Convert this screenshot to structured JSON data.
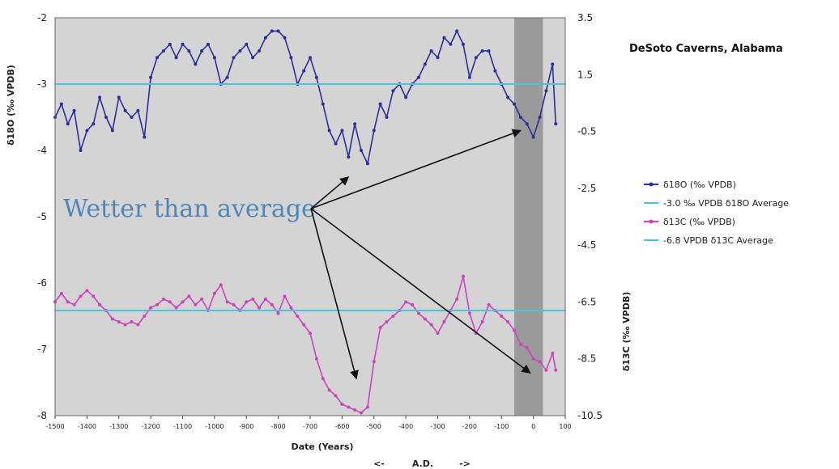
{
  "chart_data": {
    "type": "line",
    "title": "DeSoto Caverns, Alabama",
    "xlabel": "Date (Years)",
    "x_sublabel": [
      "<-",
      "A.D.",
      "->"
    ],
    "ylabel_left": "δ18O (‰ VPDB)",
    "ylabel_right": "δ13C (‰ VPDB)",
    "xlim": [
      -1500,
      100
    ],
    "ylim_left": [
      -8,
      -2
    ],
    "ylim_right": [
      -10.5,
      3.5
    ],
    "x_ticks": [
      -1500,
      -1400,
      -1300,
      -1200,
      -1100,
      -1000,
      -900,
      -800,
      -700,
      -600,
      -500,
      -400,
      -300,
      -200,
      -100,
      0,
      100
    ],
    "y_ticks_left": [
      -2,
      -3,
      -4,
      -5,
      -6,
      -7,
      -8
    ],
    "y_ticks_right": [
      3.5,
      1.5,
      -0.5,
      -2.5,
      -4.5,
      -6.5,
      -8.5,
      -10.5
    ],
    "grid": false,
    "shaded_band": {
      "x": [
        -60,
        30
      ]
    },
    "series": [
      {
        "name": "δ18O (‰ VPDB)",
        "axis": "left",
        "color": "#2b2f9c",
        "x": [
          -1500,
          -1480,
          -1460,
          -1440,
          -1420,
          -1400,
          -1380,
          -1360,
          -1340,
          -1320,
          -1300,
          -1280,
          -1260,
          -1240,
          -1220,
          -1200,
          -1180,
          -1160,
          -1140,
          -1120,
          -1100,
          -1080,
          -1060,
          -1040,
          -1020,
          -1000,
          -980,
          -960,
          -940,
          -920,
          -900,
          -880,
          -860,
          -840,
          -820,
          -800,
          -780,
          -760,
          -740,
          -720,
          -700,
          -680,
          -660,
          -640,
          -620,
          -600,
          -580,
          -560,
          -540,
          -520,
          -500,
          -480,
          -460,
          -440,
          -420,
          -400,
          -380,
          -360,
          -340,
          -320,
          -300,
          -280,
          -260,
          -240,
          -220,
          -200,
          -180,
          -160,
          -140,
          -120,
          -100,
          -80,
          -60,
          -40,
          -20,
          0,
          20,
          40,
          60,
          70
        ],
        "values": [
          -3.5,
          -3.3,
          -3.6,
          -3.4,
          -4.0,
          -3.7,
          -3.6,
          -3.2,
          -3.5,
          -3.7,
          -3.2,
          -3.4,
          -3.5,
          -3.4,
          -3.8,
          -2.9,
          -2.6,
          -2.5,
          -2.4,
          -2.6,
          -2.4,
          -2.5,
          -2.7,
          -2.5,
          -2.4,
          -2.6,
          -3.0,
          -2.9,
          -2.6,
          -2.5,
          -2.4,
          -2.6,
          -2.5,
          -2.3,
          -2.2,
          -2.2,
          -2.3,
          -2.6,
          -3.0,
          -2.8,
          -2.6,
          -2.9,
          -3.3,
          -3.7,
          -3.9,
          -3.7,
          -4.1,
          -3.6,
          -4.0,
          -4.2,
          -3.7,
          -3.3,
          -3.5,
          -3.1,
          -3.0,
          -3.2,
          -3.0,
          -2.9,
          -2.7,
          -2.5,
          -2.6,
          -2.3,
          -2.4,
          -2.2,
          -2.4,
          -2.9,
          -2.6,
          -2.5,
          -2.5,
          -2.8,
          -3.0,
          -3.2,
          -3.3,
          -3.5,
          -3.6,
          -3.8,
          -3.5,
          -3.1,
          -2.7,
          -3.6
        ]
      },
      {
        "name": "-3.0 ‰ VPDB δ18O Average",
        "axis": "left",
        "color": "#4cc3dc",
        "x": [
          -1500,
          100
        ],
        "values": [
          -3.0,
          -3.0
        ]
      },
      {
        "name": "δ13C (‰ VPDB)",
        "axis": "right",
        "color": "#cc44bb",
        "x": [
          -1500,
          -1480,
          -1460,
          -1440,
          -1420,
          -1400,
          -1380,
          -1360,
          -1340,
          -1320,
          -1300,
          -1280,
          -1260,
          -1240,
          -1220,
          -1200,
          -1180,
          -1160,
          -1140,
          -1120,
          -1100,
          -1080,
          -1060,
          -1040,
          -1020,
          -1000,
          -980,
          -960,
          -940,
          -920,
          -900,
          -880,
          -860,
          -840,
          -820,
          -800,
          -780,
          -760,
          -740,
          -720,
          -700,
          -680,
          -660,
          -640,
          -620,
          -600,
          -580,
          -560,
          -540,
          -520,
          -500,
          -480,
          -460,
          -440,
          -420,
          -400,
          -380,
          -360,
          -340,
          -320,
          -300,
          -280,
          -260,
          -240,
          -220,
          -200,
          -180,
          -160,
          -140,
          -120,
          -100,
          -80,
          -60,
          -40,
          -20,
          0,
          20,
          40,
          60,
          70
        ],
        "values": [
          -6.5,
          -6.2,
          -6.5,
          -6.6,
          -6.3,
          -6.1,
          -6.3,
          -6.6,
          -6.8,
          -7.1,
          -7.2,
          -7.3,
          -7.2,
          -7.3,
          -7.0,
          -6.7,
          -6.6,
          -6.4,
          -6.5,
          -6.7,
          -6.5,
          -6.3,
          -6.6,
          -6.4,
          -6.8,
          -6.2,
          -5.9,
          -6.5,
          -6.6,
          -6.8,
          -6.5,
          -6.4,
          -6.7,
          -6.4,
          -6.6,
          -6.9,
          -6.3,
          -6.7,
          -7.0,
          -7.3,
          -7.6,
          -8.5,
          -9.2,
          -9.6,
          -9.8,
          -10.1,
          -10.2,
          -10.3,
          -10.4,
          -10.2,
          -8.6,
          -7.4,
          -7.2,
          -7.0,
          -6.8,
          -6.5,
          -6.6,
          -6.9,
          -7.1,
          -7.3,
          -7.6,
          -7.2,
          -6.8,
          -6.4,
          -5.6,
          -6.9,
          -7.6,
          -7.2,
          -6.6,
          -6.8,
          -7.0,
          -7.2,
          -7.5,
          -8.0,
          -8.1,
          -8.5,
          -8.6,
          -8.9,
          -8.3,
          -8.9
        ]
      },
      {
        "name": "-6.8 VPDB δ13C Average",
        "axis": "right",
        "color": "#4cc3dc",
        "x": [
          -1500,
          100
        ],
        "values": [
          -6.8,
          -6.8
        ]
      }
    ],
    "annotations": [
      {
        "text": "Wetter than average",
        "color": "#4f86b8"
      }
    ],
    "legend_position": "right"
  }
}
